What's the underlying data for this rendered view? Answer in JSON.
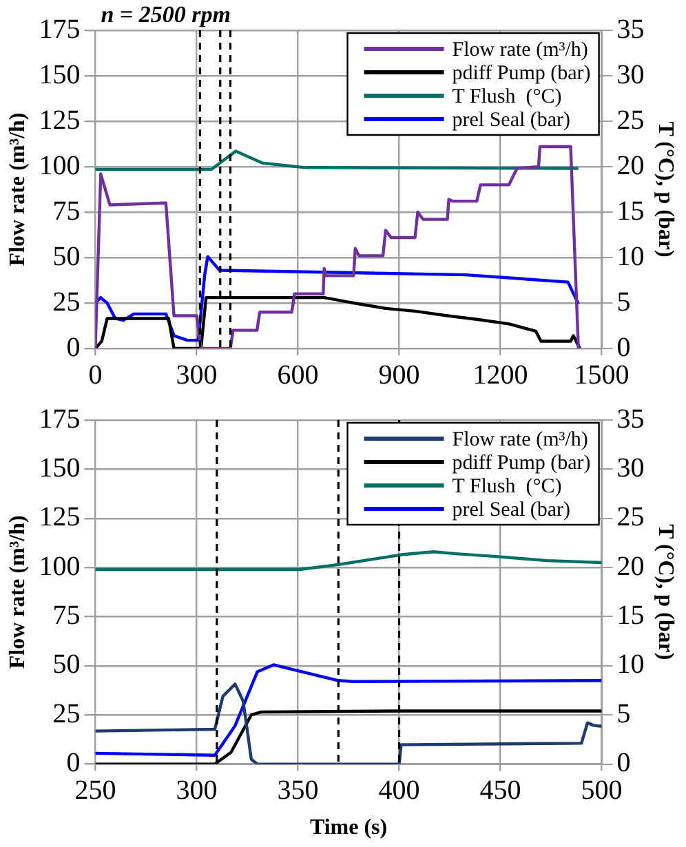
{
  "chart_data": [
    {
      "type": "line",
      "title": "n = 2500 rpm",
      "ylabel": "Flow rate (m³/h)",
      "y2label": "T (°C), p (bar)",
      "xlim": [
        0,
        1500
      ],
      "xticks": [
        0,
        300,
        600,
        900,
        1200,
        1500
      ],
      "ylim": [
        0,
        175
      ],
      "yticks": [
        0,
        25,
        50,
        75,
        100,
        125,
        150,
        175
      ],
      "y2lim": [
        0,
        35
      ],
      "y2ticks": [
        0,
        5,
        10,
        15,
        20,
        25,
        30,
        35
      ],
      "grid": true,
      "legend": "top right",
      "marker": "none",
      "line_style": "solid",
      "ref_lines": [
        {
          "axis": "x",
          "value": 310,
          "line_style": "dashed",
          "color": "#000000"
        },
        {
          "axis": "x",
          "value": 370,
          "line_style": "dashed",
          "color": "#000000"
        },
        {
          "axis": "x",
          "value": 400,
          "line_style": "dashed",
          "color": "#000000"
        }
      ],
      "series": [
        {
          "name": "Flow rate (m³/h)",
          "color": "#7030a0",
          "x": [
            0,
            16,
            43,
            209,
            233,
            300,
            313,
            400,
            408,
            479,
            487,
            582,
            590,
            675,
            678,
            683,
            765,
            770,
            781,
            852,
            860,
            876,
            947,
            955,
            971,
            1043,
            1047,
            1059,
            1130,
            1141,
            1225,
            1249,
            1313,
            1317,
            1408,
            1431
          ],
          "values": [
            0,
            96,
            79,
            80,
            18,
            18,
            0,
            0,
            10,
            10,
            20,
            20,
            30,
            30,
            44,
            40,
            40,
            55,
            51,
            51,
            65,
            61,
            61,
            75,
            71,
            71,
            82,
            81,
            81,
            90,
            90,
            99,
            100,
            111,
            111,
            0
          ]
        },
        {
          "name": "pdiff Pump (bar)",
          "color": "#000000",
          "axis": "y2",
          "x": [
            0,
            19,
            35,
            217,
            233,
            313,
            328,
            678,
            765,
            860,
            947,
            1043,
            1130,
            1225,
            1305,
            1320,
            1408,
            1416,
            1435
          ],
          "values": [
            0,
            0.8,
            3.3,
            3.3,
            0,
            0,
            5.6,
            5.6,
            5,
            4.4,
            4.1,
            3.6,
            3.2,
            2.7,
            1.9,
            0.8,
            0.8,
            1.4,
            0
          ]
        },
        {
          "name": "T Flush  (°C)",
          "color": "#007066",
          "axis": "y2",
          "x": [
            0,
            344,
            416,
            495,
            622,
            1431
          ],
          "values": [
            19.7,
            19.7,
            21.7,
            20.4,
            19.9,
            19.8
          ]
        },
        {
          "name": "prel Seal (bar)",
          "color": "#0000ff",
          "axis": "y2",
          "x": [
            0,
            16,
            35,
            59,
            83,
            114,
            209,
            233,
            273,
            305,
            324,
            333,
            368,
            1098,
            1400,
            1431
          ],
          "values": [
            5,
            5.6,
            5,
            3.3,
            3.1,
            3.8,
            3.8,
            1.4,
            0.9,
            0.9,
            8.1,
            10.1,
            8.6,
            8.1,
            7.3,
            4.9
          ]
        }
      ]
    },
    {
      "type": "line",
      "xlabel": "Time (s)",
      "ylabel": "Flow rate (m³/h)",
      "y2label": "T (°C), p (bar)",
      "xlim": [
        250,
        500
      ],
      "xticks": [
        250,
        300,
        350,
        400,
        450,
        500
      ],
      "ylim": [
        0,
        175
      ],
      "yticks": [
        0,
        25,
        50,
        75,
        100,
        125,
        150,
        175
      ],
      "y2lim": [
        0,
        35
      ],
      "y2ticks": [
        0,
        5,
        10,
        15,
        20,
        25,
        30,
        35
      ],
      "grid": true,
      "legend": "top right",
      "marker": "none",
      "line_style": "solid",
      "ref_lines": [
        {
          "axis": "x",
          "value": 310,
          "line_style": "dashed",
          "color": "#000000"
        },
        {
          "axis": "x",
          "value": 370,
          "line_style": "dashed",
          "color": "#000000"
        },
        {
          "axis": "x",
          "value": 400,
          "line_style": "dashed",
          "color": "#000000"
        }
      ],
      "series": [
        {
          "name": "Flow rate (m³/h)",
          "color": "#1f3a6e",
          "x": [
            250,
            309,
            313,
            319,
            323,
            327,
            330,
            400,
            401,
            406,
            490,
            493,
            496,
            500
          ],
          "values": [
            16.8,
            17.7,
            34.5,
            40.7,
            32,
            2.5,
            0,
            0,
            9.9,
            9.9,
            10.6,
            21,
            19.7,
            19.2
          ]
        },
        {
          "name": "pdiff Pump (bar)",
          "color": "#000000",
          "axis": "y2",
          "x": [
            250,
            309,
            317,
            327,
            332,
            400,
            500
          ],
          "values": [
            0,
            0,
            1.2,
            5,
            5.3,
            5.4,
            5.4
          ]
        },
        {
          "name": "T Flush  (°C)",
          "color": "#007066",
          "axis": "y2",
          "x": [
            250,
            351,
            370,
            401,
            417,
            428,
            449,
            473,
            500
          ],
          "values": [
            19.8,
            19.8,
            20.3,
            21.3,
            21.6,
            21.4,
            21.1,
            20.7,
            20.5
          ]
        },
        {
          "name": "prel Seal (bar)",
          "color": "#0000ff",
          "axis": "y2",
          "x": [
            250,
            309,
            319,
            330,
            338,
            348,
            370,
            377,
            500
          ],
          "values": [
            1.1,
            0.9,
            3.9,
            9.4,
            10.1,
            9.6,
            8.5,
            8.4,
            8.5
          ]
        }
      ]
    }
  ]
}
